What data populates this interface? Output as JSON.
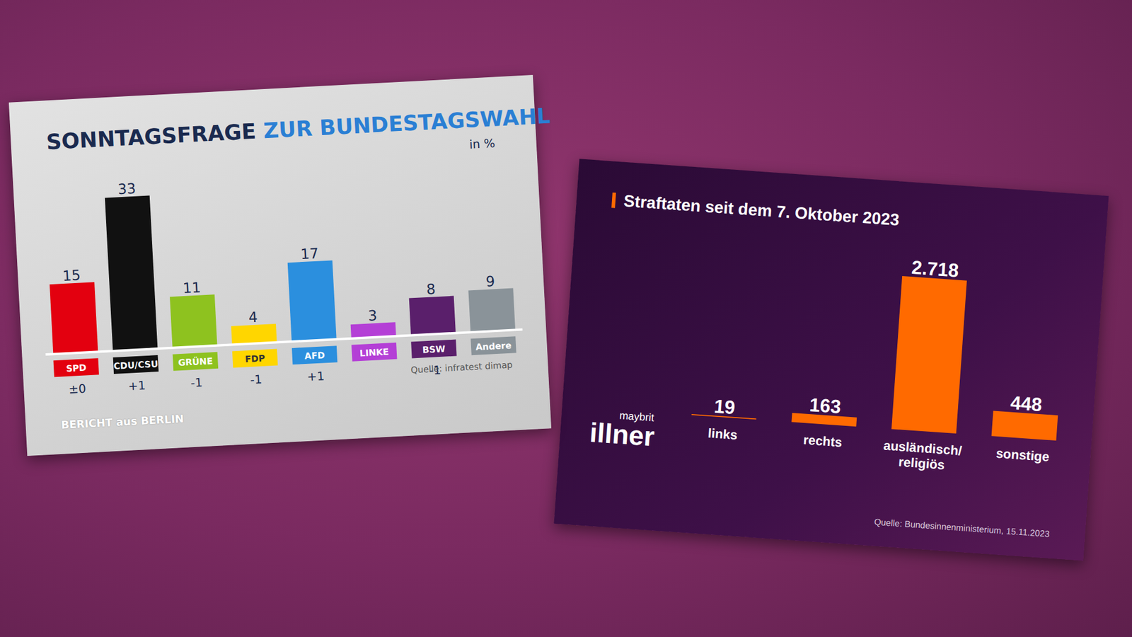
{
  "chart_data": [
    {
      "type": "bar",
      "title": "SONNTAGSFRAGE ZUR BUNDESTAGSWAHL",
      "subtitle": "in %",
      "categories": [
        "SPD",
        "CDU/CSU",
        "GRÜNE",
        "FDP",
        "AFD",
        "LINKE",
        "BSW",
        "Andere"
      ],
      "values": [
        15,
        33,
        11,
        4,
        17,
        3,
        8,
        9
      ],
      "colors": [
        "#e3000f",
        "#111111",
        "#8ec21f",
        "#ffd600",
        "#2b8fde",
        "#b43fd6",
        "#5a1f6b",
        "#8a9399"
      ],
      "changes": [
        "±0",
        "+1",
        "-1",
        "-1",
        "+1",
        null,
        "-1",
        null
      ],
      "data_labels": true,
      "tick_labels": "x",
      "source": "Quelle: infratest dimap",
      "logo": "BERICHT aus BERLIN"
    },
    {
      "type": "bar",
      "title": "Straftaten seit dem 7. Oktober 2023",
      "categories": [
        "links",
        "rechts",
        "ausländisch/religiös",
        "sonstige"
      ],
      "values": [
        19,
        163,
        2718,
        448
      ],
      "value_labels": [
        "19",
        "163",
        "2.718",
        "448"
      ],
      "color": "#ff6a00",
      "data_labels": true,
      "tick_labels": "x",
      "source": "Quelle: Bundesinnenministerium, 15.11.2023",
      "logo": "maybrit illner"
    }
  ]
}
